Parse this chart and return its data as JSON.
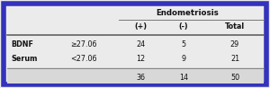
{
  "title": "Endometriosis",
  "col_headers": [
    "(+)",
    "(-)",
    "Total"
  ],
  "row_labels": [
    "BDNF",
    "Serum"
  ],
  "sub_labels": [
    "≥27.06",
    "<27.06"
  ],
  "data": [
    [
      24,
      5,
      29
    ],
    [
      12,
      9,
      21
    ]
  ],
  "totals": [
    36,
    14,
    50
  ],
  "border_color": "#3333bb",
  "bg_color": "#ebebeb",
  "total_row_bg": "#d8d8d8",
  "text_color": "#111111",
  "line_color": "#555555",
  "header_line_color": "#777777"
}
